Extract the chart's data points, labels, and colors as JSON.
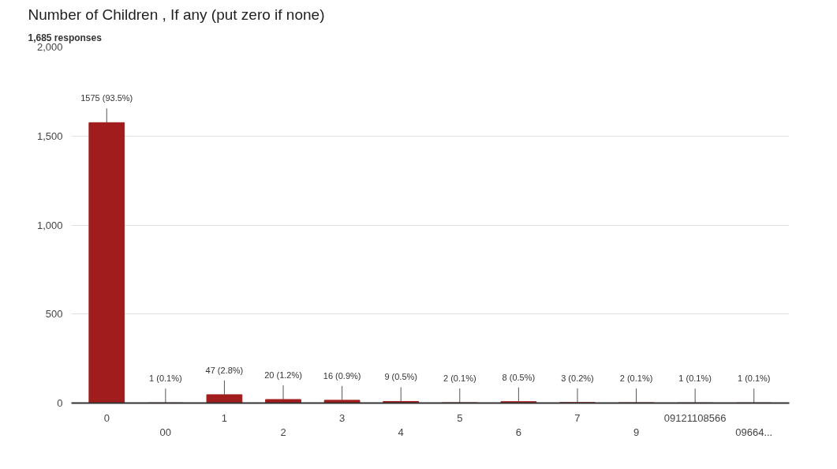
{
  "chart_data": {
    "type": "bar",
    "title": "Number of Children , If any (put zero if none)",
    "subtitle": "1,685 responses",
    "categories": [
      "0",
      "00",
      "1",
      "2",
      "3",
      "4",
      "5",
      "6",
      "7",
      "9",
      "09121108566",
      "09664..."
    ],
    "values": [
      1575,
      1,
      47,
      20,
      16,
      9,
      2,
      8,
      3,
      2,
      1,
      1
    ],
    "value_labels": [
      "1575 (93.5%)",
      "1 (0.1%)",
      "47 (2.8%)",
      "20 (1.2%)",
      "16 (0.9%)",
      "9 (0.5%)",
      "2 (0.1%)",
      "8 (0.5%)",
      "3 (0.2%)",
      "2 (0.1%)",
      "1 (0.1%)",
      "1 (0.1%)"
    ],
    "color": "#a11d1d",
    "ylim": [
      0,
      2000
    ],
    "yticks": [
      0,
      500,
      {
        "value": 1000,
        "label": "1,000"
      },
      {
        "value": 1500,
        "label": "1,500"
      },
      {
        "value": 2000,
        "label": "2,000"
      }
    ],
    "grid": "y"
  }
}
